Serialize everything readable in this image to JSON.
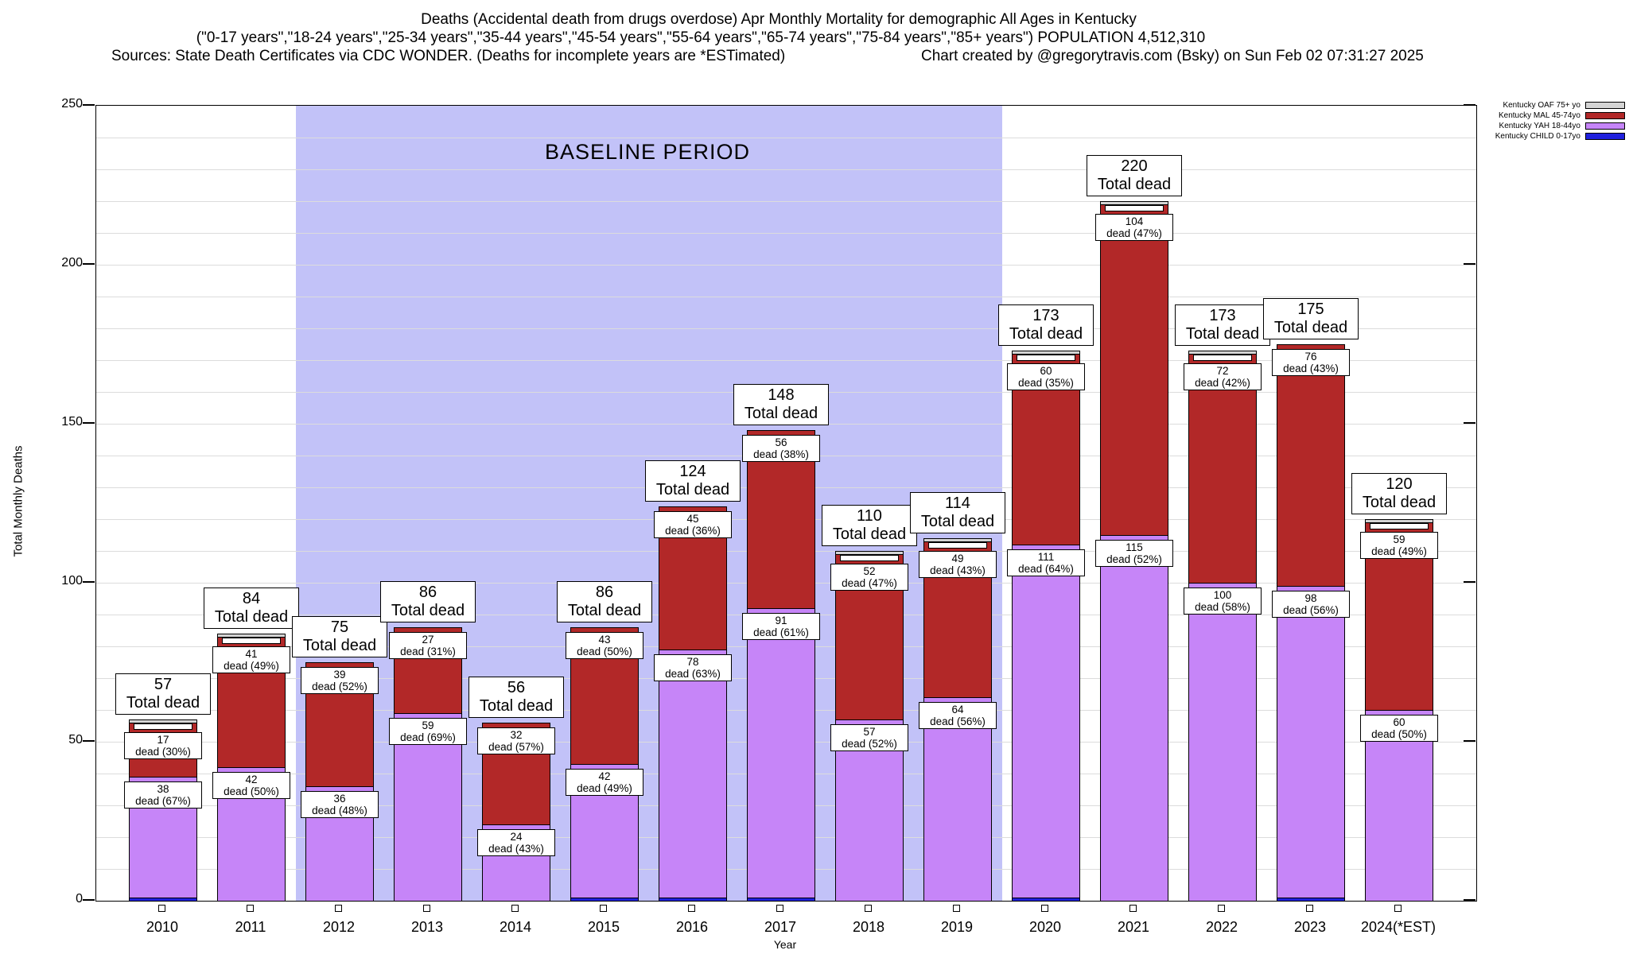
{
  "header": {
    "title_line1": "Deaths (Accidental death from drugs overdose) Apr Monthly Mortality for demographic All Ages in Kentucky",
    "title_line2": "(\"0-17 years\",\"18-24 years\",\"25-34 years\",\"35-44 years\",\"45-54 years\",\"55-64 years\",\"65-74 years\",\"75-84 years\",\"85+ years\") POPULATION 4,512,310",
    "sources": "Sources: State Death Certificates via CDC WONDER. (Deaths for incomplete years are *ESTimated)",
    "credit": "Chart created by @gregorytravis.com (Bsky) on Sun Feb 02 07:31:27 2025"
  },
  "chart_data": {
    "type": "bar",
    "stacked": true,
    "title": "Deaths (Accidental death from drugs overdose) Apr Monthly Mortality for demographic All Ages in Kentucky",
    "xlabel": "Year",
    "ylabel": "Total Monthly Deaths",
    "ylim": [
      0,
      250
    ],
    "yticks": [
      0,
      50,
      100,
      150,
      200,
      250
    ],
    "minor_grid_step": 10,
    "grid": true,
    "legend_position": "top-right",
    "baseline_band": {
      "label": "BASELINE PERIOD",
      "from": "2012",
      "to": "2019",
      "color": "#c2c2f8"
    },
    "colors": {
      "oaf": "#d4d4d4",
      "mal": "#b22828",
      "yah": "#c685f8",
      "child": "#2020dd",
      "band": "#c2c2f8"
    },
    "legend": [
      {
        "label": "Kentucky OAF 75+ yo",
        "color": "#d4d4d4"
      },
      {
        "label": "Kentucky MAL 45-74yo",
        "color": "#b22828"
      },
      {
        "label": "Kentucky YAH 18-44yo",
        "color": "#c685f8"
      },
      {
        "label": "Kentucky CHILD 0-17yo",
        "color": "#2020dd"
      }
    ],
    "categories": [
      "2010",
      "2011",
      "2012",
      "2013",
      "2014",
      "2015",
      "2016",
      "2017",
      "2018",
      "2019",
      "2020",
      "2021",
      "2022",
      "2023",
      "2024(*EST)"
    ],
    "bars": [
      {
        "year": "2010",
        "total": 57,
        "oaf": 1,
        "mal": 17,
        "yah": 38,
        "child": 1,
        "total_label": [
          "57",
          "Total dead"
        ],
        "mal_label": [
          "17",
          "dead (30%)"
        ],
        "yah_label": [
          "38",
          "dead (67%)"
        ]
      },
      {
        "year": "2011",
        "total": 84,
        "oaf": 1,
        "mal": 41,
        "yah": 42,
        "child": 0,
        "total_label": [
          "84",
          "Total dead"
        ],
        "mal_label": [
          "41",
          "dead (49%)"
        ],
        "yah_label": [
          "42",
          "dead (50%)"
        ]
      },
      {
        "year": "2012",
        "total": 75,
        "oaf": 0,
        "mal": 39,
        "yah": 36,
        "child": 0,
        "total_label": [
          "75",
          "Total dead"
        ],
        "mal_label": [
          "39",
          "dead (52%)"
        ],
        "yah_label": [
          "36",
          "dead (48%)"
        ]
      },
      {
        "year": "2013",
        "total": 86,
        "oaf": 0,
        "mal": 27,
        "yah": 59,
        "child": 0,
        "total_label": [
          "86",
          "Total dead"
        ],
        "mal_label": [
          "27",
          "dead (31%)"
        ],
        "yah_label": [
          "59",
          "dead (69%)"
        ]
      },
      {
        "year": "2014",
        "total": 56,
        "oaf": 0,
        "mal": 32,
        "yah": 24,
        "child": 0,
        "total_label": [
          "56",
          "Total dead"
        ],
        "mal_label": [
          "32",
          "dead (57%)"
        ],
        "yah_label": [
          "24",
          "dead (43%)"
        ]
      },
      {
        "year": "2015",
        "total": 86,
        "oaf": 0,
        "mal": 43,
        "yah": 42,
        "child": 1,
        "total_label": [
          "86",
          "Total dead"
        ],
        "mal_label": [
          "43",
          "dead (50%)"
        ],
        "yah_label": [
          "42",
          "dead (49%)"
        ]
      },
      {
        "year": "2016",
        "total": 124,
        "oaf": 0,
        "mal": 45,
        "yah": 78,
        "child": 1,
        "total_label": [
          "124",
          "Total dead"
        ],
        "mal_label": [
          "45",
          "dead (36%)"
        ],
        "yah_label": [
          "78",
          "dead (63%)"
        ]
      },
      {
        "year": "2017",
        "total": 148,
        "oaf": 0,
        "mal": 56,
        "yah": 91,
        "child": 1,
        "total_label": [
          "148",
          "Total dead"
        ],
        "mal_label": [
          "56",
          "dead (38%)"
        ],
        "yah_label": [
          "91",
          "dead (61%)"
        ]
      },
      {
        "year": "2018",
        "total": 110,
        "oaf": 1,
        "mal": 52,
        "yah": 57,
        "child": 0,
        "total_label": [
          "110",
          "Total dead"
        ],
        "mal_label": [
          "52",
          "dead (47%)"
        ],
        "yah_label": [
          "57",
          "dead (52%)"
        ]
      },
      {
        "year": "2019",
        "total": 114,
        "oaf": 1,
        "mal": 49,
        "yah": 64,
        "child": 0,
        "total_label": [
          "114",
          "Total dead"
        ],
        "mal_label": [
          "49",
          "dead (43%)"
        ],
        "yah_label": [
          "64",
          "dead (56%)"
        ]
      },
      {
        "year": "2020",
        "total": 173,
        "oaf": 1,
        "mal": 60,
        "yah": 111,
        "child": 1,
        "total_label": [
          "173",
          "Total dead"
        ],
        "mal_label": [
          "60",
          "dead (35%)"
        ],
        "yah_label": [
          "111",
          "dead (64%)"
        ]
      },
      {
        "year": "2021",
        "total": 220,
        "oaf": 1,
        "mal": 104,
        "yah": 115,
        "child": 0,
        "total_label": [
          "220",
          "Total dead"
        ],
        "mal_label": [
          "104",
          "dead (47%)"
        ],
        "yah_label": [
          "115",
          "dead (52%)"
        ]
      },
      {
        "year": "2022",
        "total": 173,
        "oaf": 1,
        "mal": 72,
        "yah": 100,
        "child": 0,
        "total_label": [
          "173",
          "Total dead"
        ],
        "mal_label": [
          "72",
          "dead (42%)"
        ],
        "yah_label": [
          "100",
          "dead (58%)"
        ]
      },
      {
        "year": "2023",
        "total": 175,
        "oaf": 0,
        "mal": 76,
        "yah": 98,
        "child": 1,
        "total_label": [
          "175",
          "Total dead"
        ],
        "mal_label": [
          "76",
          "dead (43%)"
        ],
        "yah_label": [
          "98",
          "dead (56%)"
        ]
      },
      {
        "year": "2024(*EST)",
        "total": 120,
        "oaf": 1,
        "mal": 59,
        "yah": 60,
        "child": 0,
        "total_label": [
          "120",
          "Total dead"
        ],
        "mal_label": [
          "59",
          "dead (49%)"
        ],
        "yah_label": [
          "60",
          "dead (50%)"
        ]
      }
    ]
  }
}
